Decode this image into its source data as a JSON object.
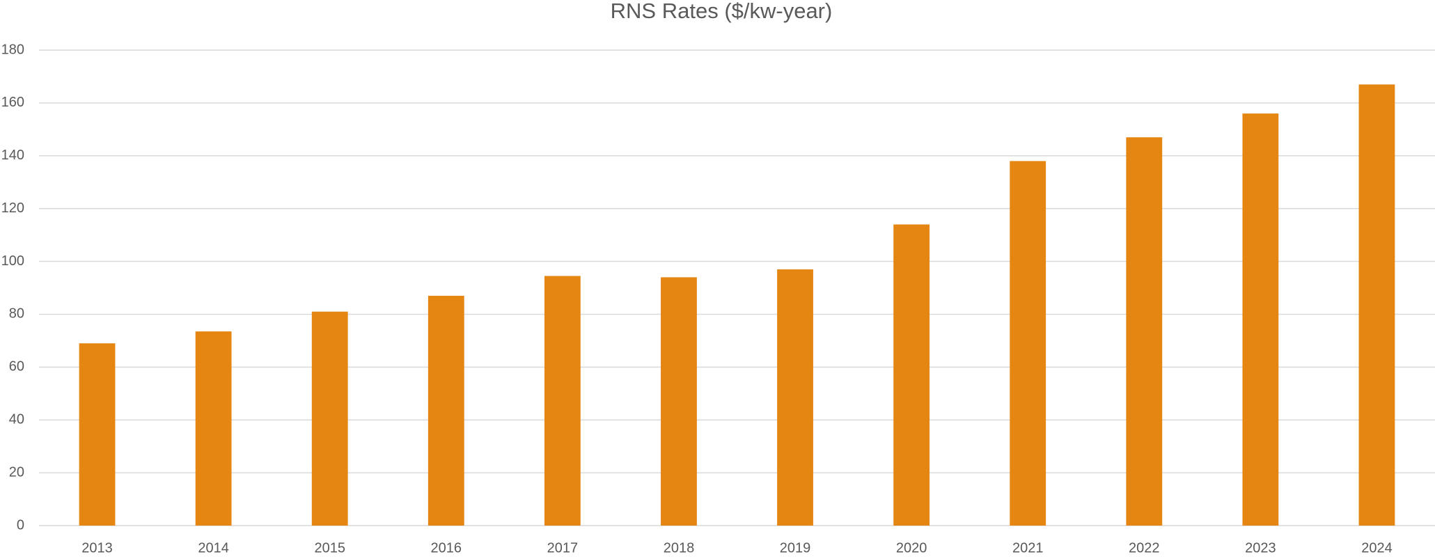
{
  "chart_data": {
    "type": "bar",
    "title": "RNS Rates ($/kw-year)",
    "categories": [
      "2013",
      "2014",
      "2015",
      "2016",
      "2017",
      "2018",
      "2019",
      "2020",
      "2021",
      "2022",
      "2023",
      "2024"
    ],
    "values": [
      69,
      73.5,
      81,
      87,
      94.5,
      94,
      97,
      114,
      138,
      147,
      156,
      167
    ],
    "color": "#e58512",
    "ylim": [
      0,
      180
    ],
    "yticks": [
      0,
      20,
      40,
      60,
      80,
      100,
      120,
      140,
      160,
      180
    ],
    "grid": true
  }
}
